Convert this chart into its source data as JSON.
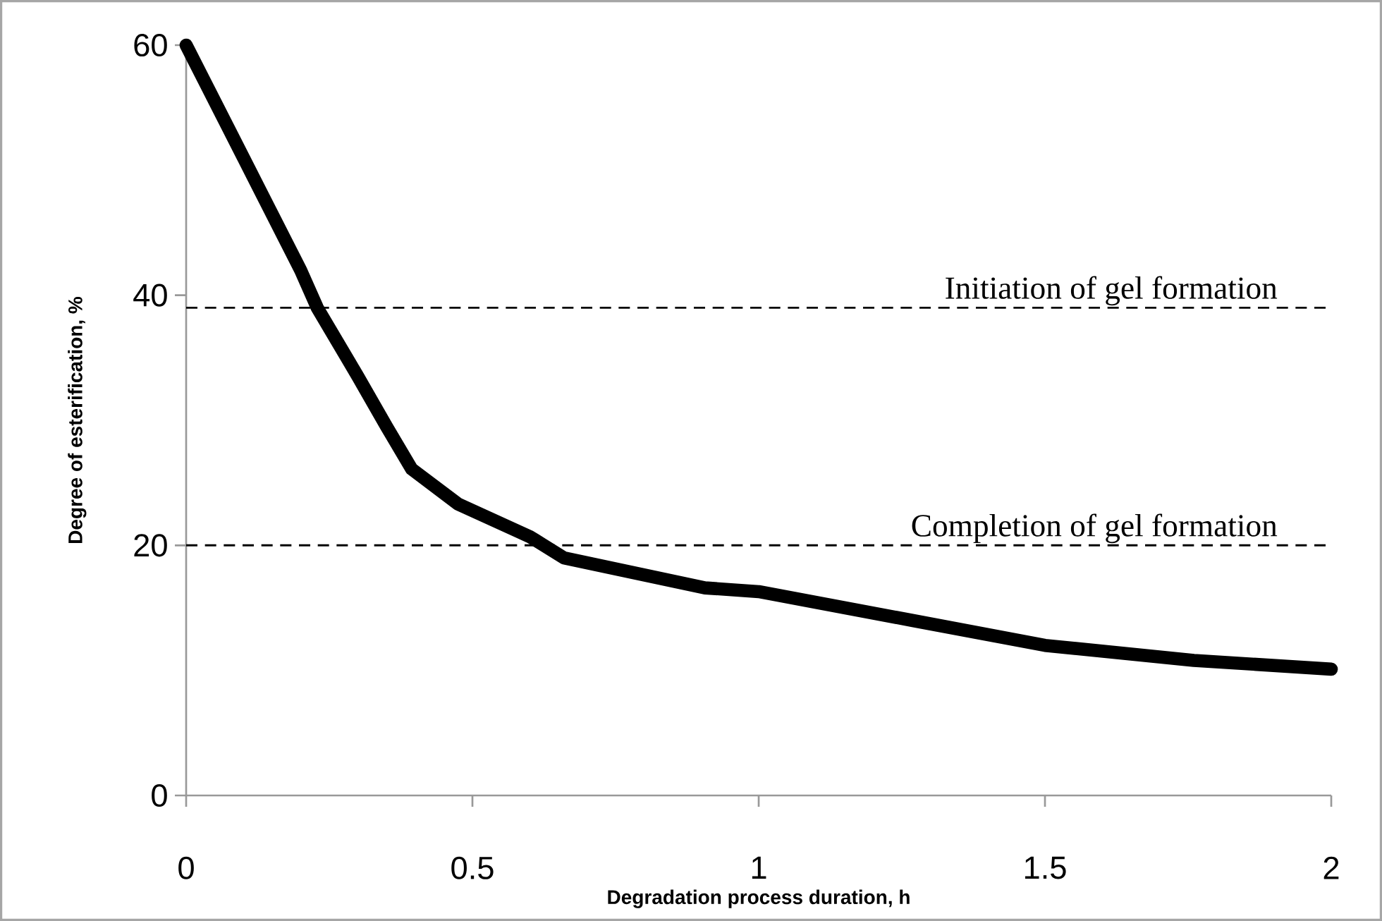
{
  "chart_data": {
    "type": "line",
    "xlabel": "Degradation process duration, h",
    "ylabel": "Degree of esterification, %",
    "x": [
      0,
      0.1,
      0.2,
      0.229,
      0.3,
      0.35,
      0.394,
      0.475,
      0.6,
      0.66,
      0.906,
      1.0,
      1.268,
      1.5,
      1.76,
      2.0
    ],
    "series": [
      {
        "color": "#000000",
        "values": [
          60,
          51,
          42,
          39,
          33.5,
          29.5,
          26.1,
          23.3,
          20.7,
          19.0,
          16.6,
          16.3,
          14.0,
          12.0,
          10.8,
          10.1
        ]
      }
    ],
    "xlim": [
      0,
      2
    ],
    "xticks": [
      0,
      0.5,
      1,
      1.5,
      2
    ],
    "ylim": [
      0,
      60
    ],
    "yticks": [
      0,
      20,
      40,
      60
    ],
    "ref_lines": [
      {
        "axis": "y",
        "value": 39,
        "label": "Initiation of gel formation",
        "color": "#000000",
        "line_style": "dashed"
      },
      {
        "axis": "y",
        "value": 20,
        "label": "Completion of gel formation",
        "color": "#000000",
        "line_style": "dashed"
      }
    ],
    "marker": "none",
    "line_style": "solid"
  }
}
